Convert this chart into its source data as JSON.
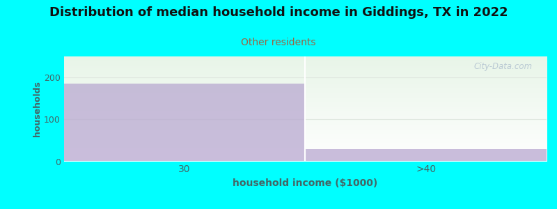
{
  "title": "Distribution of median household income in Giddings, TX in 2022",
  "subtitle": "Other residents",
  "xlabel": "household income ($1000)",
  "ylabel": "households",
  "categories": [
    "30",
    ">40"
  ],
  "values": [
    185,
    30
  ],
  "bar_color": "#b8a8d0",
  "outer_bg_color": "#00FFFF",
  "ylim": [
    0,
    250
  ],
  "yticks": [
    0,
    100,
    200
  ],
  "title_fontsize": 13,
  "subtitle_fontsize": 10,
  "subtitle_color": "#996644",
  "axis_label_color": "#446666",
  "tick_color": "#446666",
  "watermark": "City-Data.com",
  "bg_top_color": "#e8f5e8",
  "bg_bottom_color": "#ffffff",
  "gridline_color": "#e0e8e0"
}
